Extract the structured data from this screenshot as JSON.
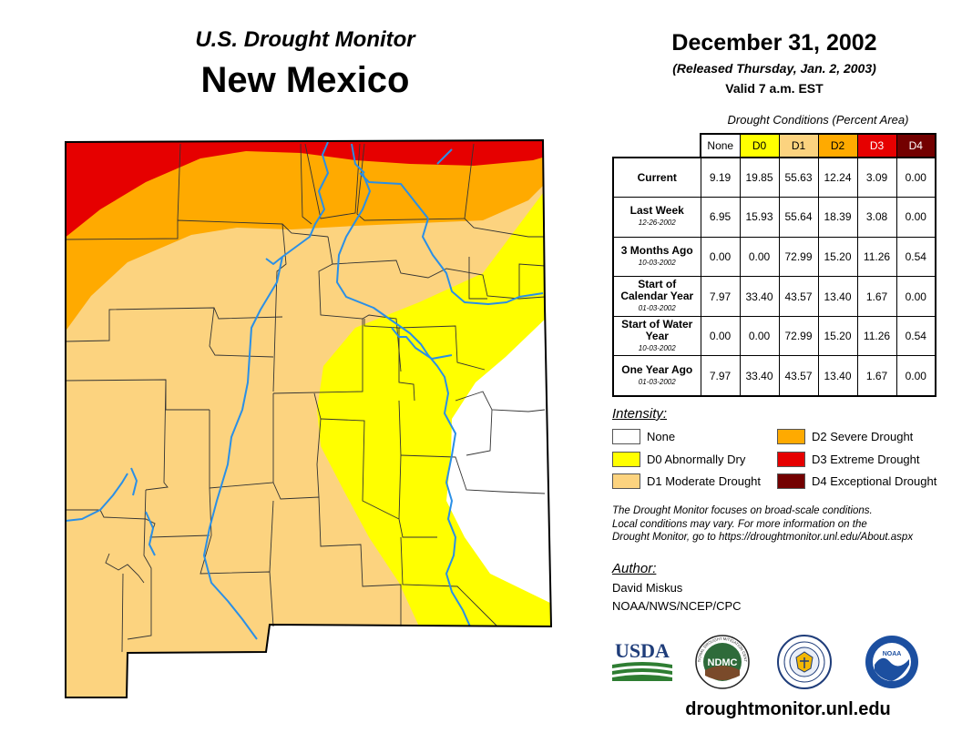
{
  "header": {
    "subtitle": "U.S. Drought Monitor",
    "state": "New Mexico",
    "date": "December 31, 2002",
    "released": "(Released Thursday, Jan. 2, 2003)",
    "valid": "Valid 7 a.m. EST"
  },
  "table": {
    "caption": "Drought Conditions (Percent Area)",
    "columns": [
      "None",
      "D0",
      "D1",
      "D2",
      "D3",
      "D4"
    ],
    "column_colors": [
      "#ffffff",
      "#ffff00",
      "#fcd37f",
      "#ffaa00",
      "#e60000",
      "#730000"
    ],
    "rows": [
      {
        "label": "Current",
        "date": "",
        "values": [
          "9.19",
          "19.85",
          "55.63",
          "12.24",
          "3.09",
          "0.00"
        ]
      },
      {
        "label": "Last Week",
        "date": "12-26-2002",
        "values": [
          "6.95",
          "15.93",
          "55.64",
          "18.39",
          "3.08",
          "0.00"
        ]
      },
      {
        "label": "3 Months Ago",
        "date": "10-03-2002",
        "values": [
          "0.00",
          "0.00",
          "72.99",
          "15.20",
          "11.26",
          "0.54"
        ]
      },
      {
        "label": "Start of Calendar Year",
        "date": "01-03-2002",
        "values": [
          "7.97",
          "33.40",
          "43.57",
          "13.40",
          "1.67",
          "0.00"
        ]
      },
      {
        "label": "Start of Water Year",
        "date": "10-03-2002",
        "values": [
          "0.00",
          "0.00",
          "72.99",
          "15.20",
          "11.26",
          "0.54"
        ]
      },
      {
        "label": "One Year Ago",
        "date": "01-03-2002",
        "values": [
          "7.97",
          "33.40",
          "43.57",
          "13.40",
          "1.67",
          "0.00"
        ]
      }
    ]
  },
  "legend": {
    "title": "Intensity:",
    "items": [
      {
        "label": "None",
        "color": "#ffffff"
      },
      {
        "label": "D0 Abnormally Dry",
        "color": "#ffff00"
      },
      {
        "label": "D1 Moderate Drought",
        "color": "#fcd37f"
      },
      {
        "label": "D2 Severe Drought",
        "color": "#ffaa00"
      },
      {
        "label": "D3 Extreme Drought",
        "color": "#e60000"
      },
      {
        "label": "D4 Exceptional Drought",
        "color": "#730000"
      }
    ]
  },
  "note": {
    "line1": "The Drought Monitor focuses on broad-scale conditions.",
    "line2": "Local conditions may vary. For more information on the",
    "line3": "Drought Monitor, go to https://droughtmonitor.unl.edu/About.aspx"
  },
  "author": {
    "title": "Author:",
    "name": "David Miskus",
    "org": "NOAA/NWS/NCEP/CPC"
  },
  "logos": {
    "usda": "USDA",
    "ndmc": "NDMC",
    "ndmc_ring": "NATIONAL DROUGHT MITIGATION CENTER",
    "noaa": "NOAA"
  },
  "site": "droughtmonitor.unl.edu",
  "map_colors": {
    "none": "#ffffff",
    "d0": "#ffff00",
    "d1": "#fcd37f",
    "d2": "#ffaa00",
    "d3": "#e60000",
    "river": "#2a8fe6"
  }
}
